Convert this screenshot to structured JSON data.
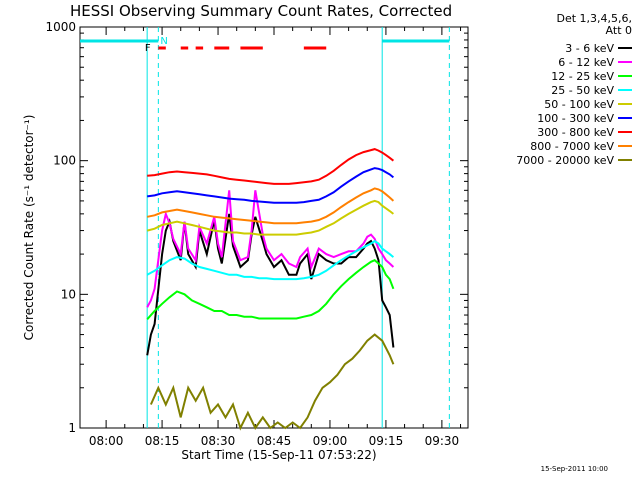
{
  "chart_data": {
    "type": "line",
    "title": "HESSI Observing Summary Count Rates, Corrected",
    "xlabel": "Start Time (15-Sep-11 07:53:22)",
    "ylabel": "Corrected Count Rate (s⁻¹ detector⁻¹)",
    "y_scale": "log",
    "ylim": [
      1,
      1000
    ],
    "xlim_minutes": [
      -7,
      97
    ],
    "x_tick_labels": [
      "08:00",
      "08:15",
      "08:30",
      "08:45",
      "09:00",
      "09:15",
      "09:30"
    ],
    "x_tick_minutes": [
      0,
      15,
      30,
      45,
      60,
      75,
      90
    ],
    "y_tick_labels": [
      "1",
      "10",
      "100",
      "1000"
    ],
    "y_ticks": [
      1,
      10,
      100,
      1000
    ],
    "legend_header": [
      "Det 1,3,4,5,6,",
      "Att 0"
    ],
    "footer_stamp": "15-Sep-2011 10:00",
    "annotations": {
      "flags_labels": [
        "F",
        "N"
      ],
      "night_label_minute": 14,
      "flag_label_minute": 13,
      "night_intervals_minutes": [
        [
          -7,
          14
        ],
        [
          74,
          92
        ]
      ],
      "flag_segments_minutes": [
        [
          14,
          16
        ],
        [
          20,
          22
        ],
        [
          24,
          26
        ],
        [
          29,
          33
        ],
        [
          36,
          42
        ],
        [
          53,
          59
        ]
      ],
      "vertical_solid_minutes": [
        11,
        74
      ],
      "vertical_dashed_minutes": [
        14,
        92
      ]
    },
    "series": [
      {
        "name": "3 - 6 keV",
        "color": "#000000",
        "x": [
          11,
          12,
          13,
          15,
          16,
          17,
          18,
          20,
          21,
          22,
          24,
          25,
          27,
          29,
          30,
          31,
          33,
          34,
          36,
          38,
          39,
          40,
          42,
          43,
          45,
          47,
          49,
          51,
          52,
          54,
          55,
          57,
          59,
          61,
          63,
          65,
          67,
          69,
          70,
          71,
          72,
          73,
          74,
          75,
          76,
          77
        ],
        "y": [
          3.5,
          5,
          6,
          20,
          30,
          35,
          25,
          18,
          35,
          20,
          16,
          30,
          20,
          36,
          22,
          17,
          40,
          23,
          16,
          18,
          28,
          38,
          25,
          20,
          16,
          18,
          14,
          14,
          17,
          20,
          13,
          20,
          18,
          17,
          17,
          19,
          19,
          22,
          24,
          25,
          22,
          18,
          9,
          8,
          7,
          4
        ]
      },
      {
        "name": "6 - 12 keV",
        "color": "#ff00ff",
        "x": [
          11,
          12,
          13,
          15,
          16,
          17,
          18,
          20,
          21,
          22,
          24,
          25,
          27,
          29,
          30,
          31,
          33,
          34,
          36,
          38,
          39,
          40,
          42,
          43,
          45,
          47,
          49,
          51,
          52,
          54,
          55,
          57,
          59,
          61,
          63,
          65,
          67,
          69,
          70,
          71,
          72,
          73,
          74,
          75,
          76,
          77
        ],
        "y": [
          8,
          9,
          11,
          30,
          40,
          34,
          26,
          20,
          35,
          22,
          18,
          32,
          24,
          38,
          24,
          19,
          60,
          25,
          18,
          19,
          30,
          60,
          28,
          22,
          18,
          20,
          17,
          16,
          19,
          22,
          16,
          22,
          20,
          19,
          20,
          21,
          21,
          24,
          27,
          28,
          26,
          22,
          20,
          18,
          17,
          16
        ]
      },
      {
        "name": "12 - 25 keV",
        "color": "#00ff00",
        "x": [
          11,
          13,
          15,
          17,
          19,
          21,
          23,
          25,
          27,
          29,
          31,
          33,
          35,
          37,
          39,
          41,
          43,
          45,
          47,
          49,
          51,
          53,
          55,
          57,
          59,
          61,
          63,
          65,
          67,
          69,
          71,
          72,
          73,
          74,
          75,
          76,
          77
        ],
        "y": [
          6.5,
          7.5,
          8.5,
          9.5,
          10.5,
          10,
          9,
          8.5,
          8,
          7.5,
          7.5,
          7,
          7,
          6.8,
          6.8,
          6.6,
          6.6,
          6.6,
          6.6,
          6.6,
          6.6,
          6.8,
          7,
          7.5,
          8.5,
          10,
          11.5,
          13,
          14.5,
          16,
          17.5,
          18,
          17,
          16,
          14,
          13,
          11
        ]
      },
      {
        "name": "25 - 50 keV",
        "color": "#00ffff",
        "x": [
          11,
          13,
          15,
          17,
          19,
          21,
          23,
          25,
          27,
          29,
          31,
          33,
          35,
          37,
          39,
          41,
          43,
          45,
          47,
          49,
          51,
          53,
          55,
          57,
          59,
          61,
          63,
          65,
          67,
          69,
          71,
          72,
          73,
          74,
          75,
          76,
          77
        ],
        "y": [
          14,
          15,
          16.5,
          18,
          19,
          18.5,
          17,
          16,
          15.5,
          15,
          14.5,
          14,
          14,
          13.5,
          13.5,
          13.2,
          13.2,
          13,
          13,
          13,
          13,
          13.2,
          13.5,
          14,
          15,
          16.5,
          18,
          19.5,
          21,
          22.5,
          24,
          25,
          24,
          22,
          21,
          20,
          19
        ]
      },
      {
        "name": "50 - 100 keV",
        "color": "#cccc00",
        "x": [
          11,
          13,
          15,
          17,
          19,
          21,
          23,
          25,
          27,
          29,
          31,
          33,
          35,
          37,
          39,
          41,
          43,
          45,
          47,
          49,
          51,
          53,
          55,
          57,
          59,
          61,
          63,
          65,
          67,
          69,
          71,
          72,
          73,
          74,
          75,
          76,
          77
        ],
        "y": [
          30,
          31,
          33,
          34,
          35,
          34,
          33,
          32,
          31,
          30,
          29.5,
          29,
          29,
          28.5,
          28.5,
          28,
          28,
          28,
          28,
          28,
          28,
          28.5,
          29,
          30,
          32,
          34,
          37,
          40,
          43,
          46,
          49,
          50,
          49,
          46,
          44,
          42,
          40
        ]
      },
      {
        "name": "100 - 300 keV",
        "color": "#0000ff",
        "x": [
          11,
          13,
          15,
          17,
          19,
          21,
          23,
          25,
          27,
          29,
          31,
          33,
          35,
          37,
          39,
          41,
          43,
          45,
          47,
          49,
          51,
          53,
          55,
          57,
          59,
          61,
          63,
          65,
          67,
          69,
          71,
          72,
          73,
          74,
          75,
          76,
          77
        ],
        "y": [
          54,
          55,
          57,
          58,
          59,
          58,
          57,
          56,
          55,
          54,
          53,
          52,
          51.5,
          51,
          50,
          49.5,
          49,
          48.5,
          48.5,
          48.5,
          48.5,
          49,
          50,
          51,
          54,
          58,
          64,
          70,
          76,
          82,
          86,
          88,
          87,
          85,
          82,
          79,
          75
        ]
      },
      {
        "name": "300 - 800 keV",
        "color": "#ff0000",
        "x": [
          11,
          13,
          15,
          17,
          19,
          21,
          23,
          25,
          27,
          29,
          31,
          33,
          35,
          37,
          39,
          41,
          43,
          45,
          47,
          49,
          51,
          53,
          55,
          57,
          59,
          61,
          63,
          65,
          67,
          69,
          71,
          72,
          73,
          74,
          75,
          76,
          77
        ],
        "y": [
          77,
          78,
          80,
          82,
          83,
          82,
          81,
          80,
          79,
          77,
          75,
          73,
          72,
          71,
          70,
          69,
          68,
          67,
          67,
          67,
          68,
          69,
          70,
          72,
          77,
          84,
          93,
          102,
          110,
          116,
          120,
          122,
          119,
          115,
          110,
          105,
          100
        ]
      },
      {
        "name": "800 - 7000 keV",
        "color": "#ff8000",
        "x": [
          11,
          13,
          15,
          17,
          19,
          21,
          23,
          25,
          27,
          29,
          31,
          33,
          35,
          37,
          39,
          41,
          43,
          45,
          47,
          49,
          51,
          53,
          55,
          57,
          59,
          61,
          63,
          65,
          67,
          69,
          71,
          72,
          73,
          74,
          75,
          76,
          77
        ],
        "y": [
          38,
          39,
          41,
          42,
          43,
          42,
          41,
          40,
          39,
          38,
          37.5,
          37,
          36.5,
          36,
          35.5,
          35,
          34.5,
          34,
          34,
          34,
          34,
          34.5,
          35,
          36,
          38,
          41,
          45,
          49,
          53,
          57,
          60,
          62,
          61,
          59,
          56,
          53,
          50
        ]
      },
      {
        "name": "7000 - 20000 keV",
        "color": "#808000",
        "x": [
          12,
          14,
          16,
          18,
          20,
          22,
          24,
          26,
          28,
          30,
          32,
          34,
          36,
          38,
          40,
          42,
          44,
          46,
          48,
          50,
          52,
          54,
          56,
          58,
          60,
          62,
          64,
          66,
          68,
          70,
          72,
          74,
          76,
          77
        ],
        "y": [
          1.5,
          2,
          1.5,
          2,
          1.2,
          2,
          1.6,
          2,
          1.3,
          1.5,
          1.2,
          1.5,
          1,
          1.3,
          1,
          1.2,
          1,
          1.1,
          1,
          1.1,
          1,
          1.2,
          1.6,
          2,
          2.2,
          2.5,
          3,
          3.3,
          3.8,
          4.5,
          5,
          4.5,
          3.5,
          3
        ]
      }
    ]
  }
}
